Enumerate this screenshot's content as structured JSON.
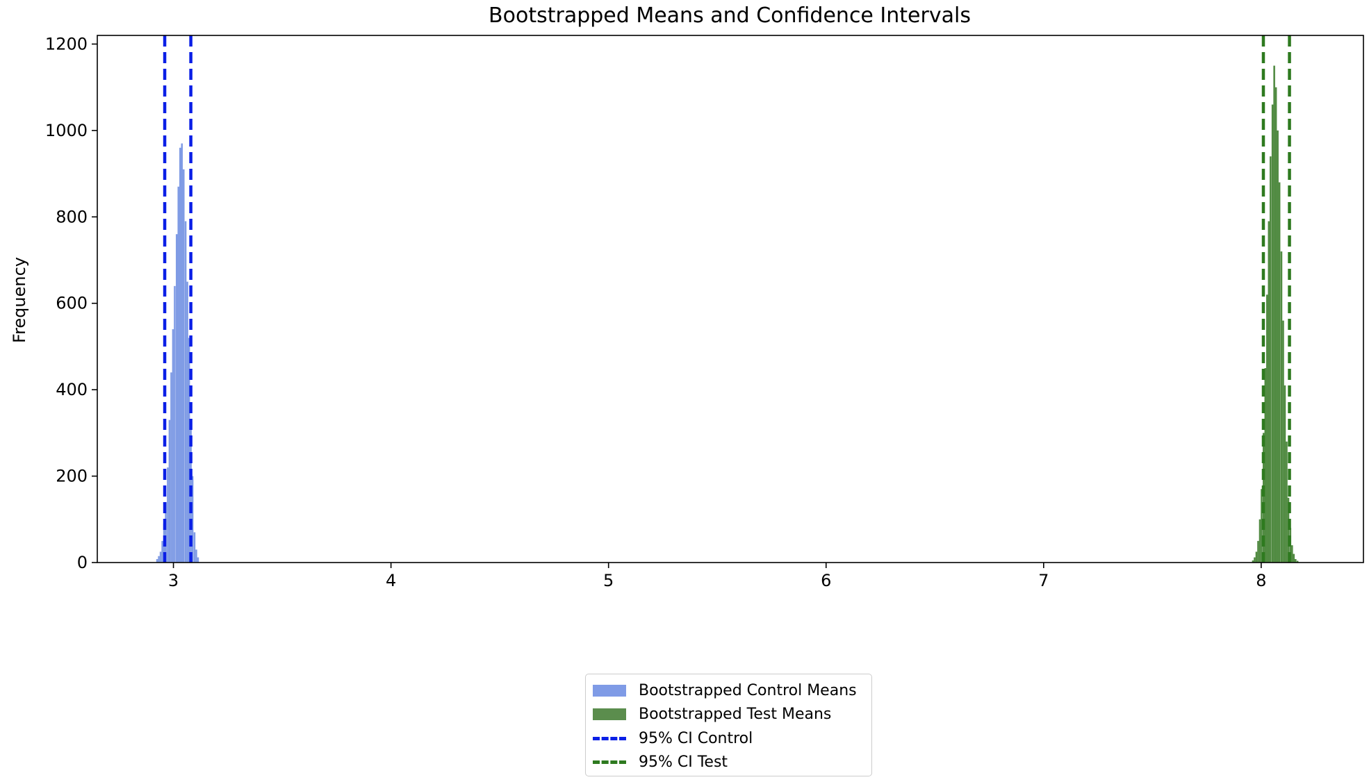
{
  "chart_data": {
    "type": "histogram",
    "title": "Bootstrapped Means and Confidence Intervals",
    "xlabel": "",
    "ylabel": "Frequency",
    "xlim": [
      2.65,
      8.47
    ],
    "ylim": [
      0,
      1220
    ],
    "x_ticks": [
      3,
      4,
      5,
      6,
      7,
      8
    ],
    "y_ticks": [
      0,
      200,
      400,
      600,
      800,
      1000,
      1200
    ],
    "grid": false,
    "legend_position": "bottom-center outside plot",
    "series": [
      {
        "name": "Bootstrapped Control Means",
        "kind": "bars",
        "color": "#6a8be0",
        "bin_width": 0.0082,
        "bin_centers": [
          2.925,
          2.933,
          2.941,
          2.949,
          2.957,
          2.965,
          2.974,
          2.982,
          2.99,
          2.998,
          3.006,
          3.015,
          3.023,
          3.031,
          3.039,
          3.047,
          3.056,
          3.064,
          3.072,
          3.08,
          3.088,
          3.097,
          3.105,
          3.113
        ],
        "counts": [
          8,
          15,
          25,
          50,
          90,
          140,
          220,
          330,
          440,
          540,
          640,
          760,
          870,
          960,
          970,
          910,
          790,
          650,
          520,
          330,
          200,
          70,
          30,
          12
        ]
      },
      {
        "name": "Bootstrapped Test Means",
        "kind": "bars",
        "color": "#3d7d2c",
        "bin_width": 0.0082,
        "bin_centers": [
          7.962,
          7.97,
          7.978,
          7.986,
          7.994,
          8.002,
          8.011,
          8.019,
          8.027,
          8.035,
          8.043,
          8.052,
          8.06,
          8.068,
          8.076,
          8.084,
          8.093,
          8.101,
          8.109,
          8.117,
          8.125,
          8.134,
          8.142,
          8.15,
          8.158,
          8.167
        ],
        "counts": [
          5,
          12,
          25,
          50,
          100,
          170,
          300,
          450,
          620,
          790,
          940,
          1060,
          1150,
          1100,
          1000,
          880,
          720,
          560,
          410,
          280,
          150,
          80,
          40,
          20,
          8,
          4
        ]
      },
      {
        "name": "95% CI Control",
        "kind": "vlines",
        "color": "#0a1fe6",
        "style": "dashed",
        "x": [
          2.96,
          3.08
        ]
      },
      {
        "name": "95% CI Test",
        "kind": "vlines",
        "color": "#2e7a1f",
        "style": "dashed",
        "x": [
          8.01,
          8.13
        ]
      }
    ]
  },
  "legend": {
    "items": [
      {
        "label": "Bootstrapped Control Means",
        "color": "#6a8be0",
        "type": "patch"
      },
      {
        "label": "Bootstrapped Test Means",
        "color": "#3d7d2c",
        "type": "patch"
      },
      {
        "label": "95% CI Control",
        "color": "#0a1fe6",
        "type": "dashed-line"
      },
      {
        "label": "95% CI Test",
        "color": "#2e7a1f",
        "type": "dashed-line"
      }
    ]
  }
}
